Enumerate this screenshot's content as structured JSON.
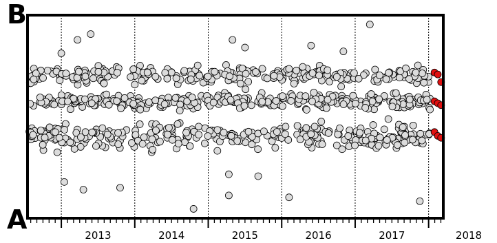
{
  "labels": {
    "top": "B",
    "bottom": "A"
  },
  "chart_data": {
    "type": "scatter",
    "title": "",
    "xlabel": "",
    "ylabel": "",
    "x_tick_labels": [
      "2013",
      "2014",
      "2015",
      "2016",
      "2017",
      "2018"
    ],
    "year_boundaries": [
      2013,
      2014,
      2015,
      2016,
      2017,
      2018
    ],
    "xlim": [
      2012.54,
      2018.2
    ],
    "ylim": [
      0,
      1
    ],
    "grid": "vertical dashed lines at year boundaries",
    "y_levels_note": "y is relative position between A (0) and B (1)",
    "colors": {
      "observed": "#dcdcdc",
      "recent": "#e01010",
      "outline": "#000000"
    },
    "series": [
      {
        "name": "",
        "color": "#dcdcdc",
        "clusters": [
          {
            "y_center": 0.715,
            "spread": 0.025,
            "count": 260
          },
          {
            "y_center": 0.58,
            "spread": 0.02,
            "count": 330
          },
          {
            "y_center": 0.4,
            "spread": 0.035,
            "count": 320
          }
        ],
        "outliers": [
          {
            "x": 2013.0,
            "y": 0.83
          },
          {
            "x": 2013.22,
            "y": 0.9
          },
          {
            "x": 2013.3,
            "y": 0.12
          },
          {
            "x": 2013.04,
            "y": 0.16
          },
          {
            "x": 2013.8,
            "y": 0.13
          },
          {
            "x": 2013.4,
            "y": 0.93
          },
          {
            "x": 2014.8,
            "y": 0.02
          },
          {
            "x": 2015.33,
            "y": 0.9
          },
          {
            "x": 2015.28,
            "y": 0.2
          },
          {
            "x": 2015.28,
            "y": 0.09
          },
          {
            "x": 2015.68,
            "y": 0.19
          },
          {
            "x": 2015.5,
            "y": 0.86
          },
          {
            "x": 2016.1,
            "y": 0.08
          },
          {
            "x": 2016.4,
            "y": 0.87
          },
          {
            "x": 2017.2,
            "y": 0.98
          },
          {
            "x": 2016.84,
            "y": 0.84
          },
          {
            "x": 2017.88,
            "y": 0.06
          }
        ]
      },
      {
        "name": "",
        "color": "#e01010",
        "x_range": [
          2018.08,
          2018.17
        ],
        "y_values": [
          0.73,
          0.72,
          0.68,
          0.58,
          0.57,
          0.56,
          0.42,
          0.4,
          0.39
        ]
      }
    ]
  }
}
